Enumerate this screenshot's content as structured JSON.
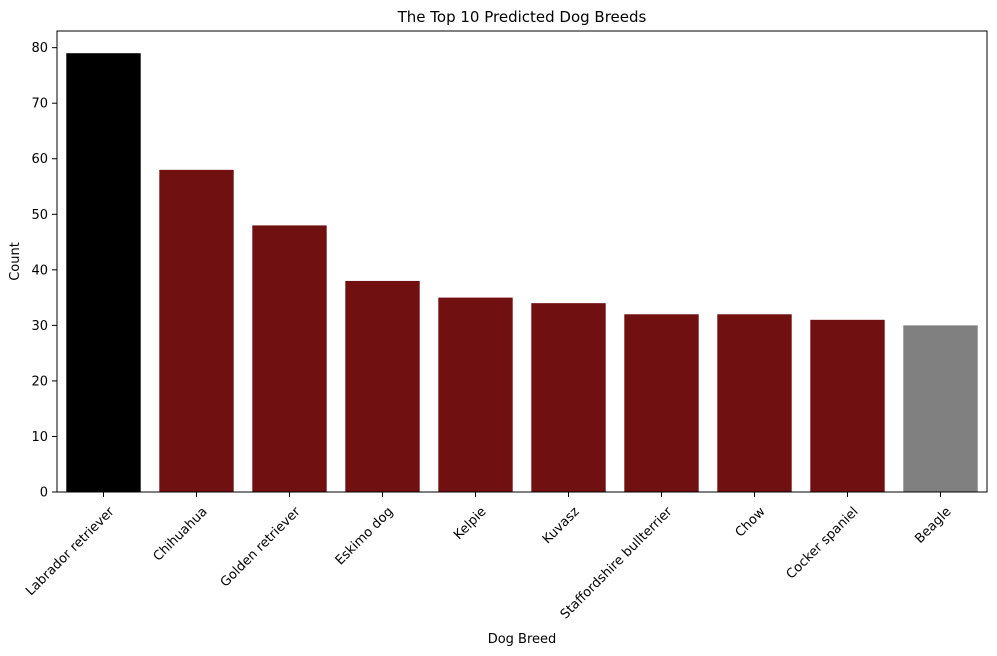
{
  "chart_data": {
    "type": "bar",
    "title": "The Top 10 Predicted Dog Breeds",
    "xlabel": "Dog Breed",
    "ylabel": "Count",
    "categories": [
      "Labrador retriever",
      "Chihuahua",
      "Golden retriever",
      "Eskimo dog",
      "Kelpie",
      "Kuvasz",
      "Staffordshire bullterrier",
      "Chow",
      "Cocker spaniel",
      "Beagle"
    ],
    "values": [
      79,
      58,
      48,
      38,
      35,
      34,
      32,
      32,
      31,
      30
    ],
    "colors": [
      "#000000",
      "#701010",
      "#701010",
      "#701010",
      "#701010",
      "#701010",
      "#701010",
      "#701010",
      "#701010",
      "#808080"
    ],
    "ylim": [
      0,
      83
    ],
    "yticks": [
      0,
      10,
      20,
      30,
      40,
      50,
      60,
      70,
      80
    ],
    "grid": false,
    "xtick_rotation_deg": 45
  }
}
